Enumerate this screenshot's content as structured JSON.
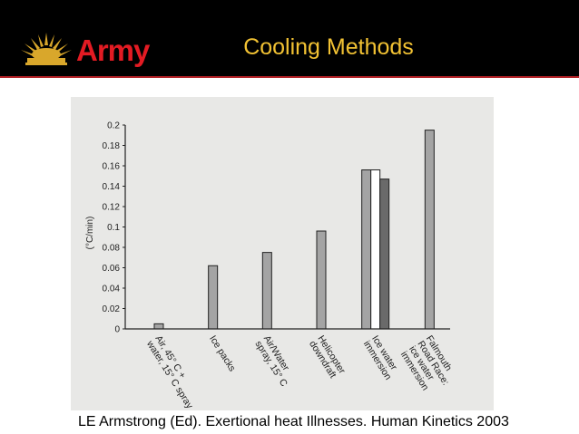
{
  "header": {
    "brand_label": "Army",
    "title": "Cooling Methods"
  },
  "caption": "LE Armstrong (Ed). Exertional heat Illnesses. Human Kinetics 2003",
  "colors": {
    "header_bg": "#000000",
    "accent_red": "#e31b23",
    "title_gold": "#f2c233",
    "bar_gray": "#a4a4a4",
    "bar_white": "#ffffff",
    "bar_dark": "#6a6a6a"
  },
  "chart_data": {
    "type": "bar",
    "ylabel": "(°C/min)",
    "ylim": [
      0,
      0.2
    ],
    "yticks": [
      "0",
      "0.02",
      "0.04",
      "0.06",
      "0.08",
      "0.1",
      "0.12",
      "0.14",
      "0.16",
      "0.18",
      "0.2"
    ],
    "grid": false,
    "categories": [
      [
        "Air, 45° C +",
        "water, 15° C spray"
      ],
      [
        "Ice packs"
      ],
      [
        "Air/Water",
        "spray, 15° C"
      ],
      [
        "Helicopter",
        "downdraft"
      ],
      [
        "Ice water",
        "immersion"
      ],
      [
        "Falmouth",
        "Road Race:",
        "ice water",
        "immersion"
      ]
    ],
    "series": [
      {
        "fill": "gray",
        "values": [
          0.005,
          0.062,
          0.075,
          0.096,
          0.156,
          0.195
        ]
      },
      {
        "fill": "white",
        "values": [
          null,
          null,
          null,
          null,
          0.156,
          null
        ]
      },
      {
        "fill": "dark",
        "values": [
          null,
          null,
          null,
          null,
          0.147,
          null
        ]
      }
    ]
  }
}
